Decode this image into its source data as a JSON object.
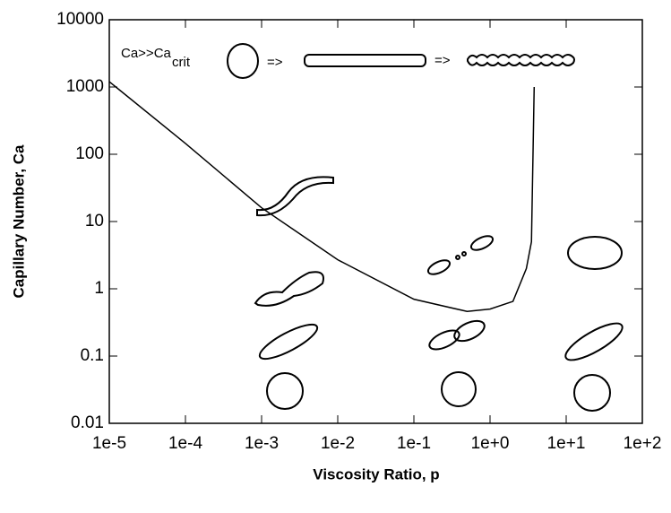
{
  "chart_data": {
    "type": "line",
    "x_label": "Viscosity Ratio, p",
    "y_label": "Capillary Number, Ca",
    "x_log": true,
    "y_log": true,
    "xlim": [
      1e-05,
      100
    ],
    "ylim": [
      0.01,
      10000
    ],
    "xticks": [
      {
        "value": 1e-05,
        "label": "1e-5"
      },
      {
        "value": 0.0001,
        "label": "1e-4"
      },
      {
        "value": 0.001,
        "label": "1e-3"
      },
      {
        "value": 0.01,
        "label": "1e-2"
      },
      {
        "value": 0.1,
        "label": "1e-1"
      },
      {
        "value": 1,
        "label": "1e+0"
      },
      {
        "value": 10,
        "label": "1e+1"
      },
      {
        "value": 100,
        "label": "1e+2"
      }
    ],
    "yticks": [
      0.01,
      0.1,
      1,
      10,
      100,
      1000,
      10000
    ],
    "x": [
      1e-05,
      0.0001,
      0.001,
      0.01,
      0.1,
      0.5,
      1,
      2,
      3,
      3.5,
      3.8
    ],
    "series": [
      {
        "color": "#000000",
        "values": [
          1200,
          145,
          16,
          2.7,
          0.7,
          0.46,
          0.5,
          0.65,
          2,
          5,
          1000
        ]
      }
    ],
    "annotations": [
      "Ca>>Ca",
      "crit",
      "=>",
      "=>"
    ]
  }
}
